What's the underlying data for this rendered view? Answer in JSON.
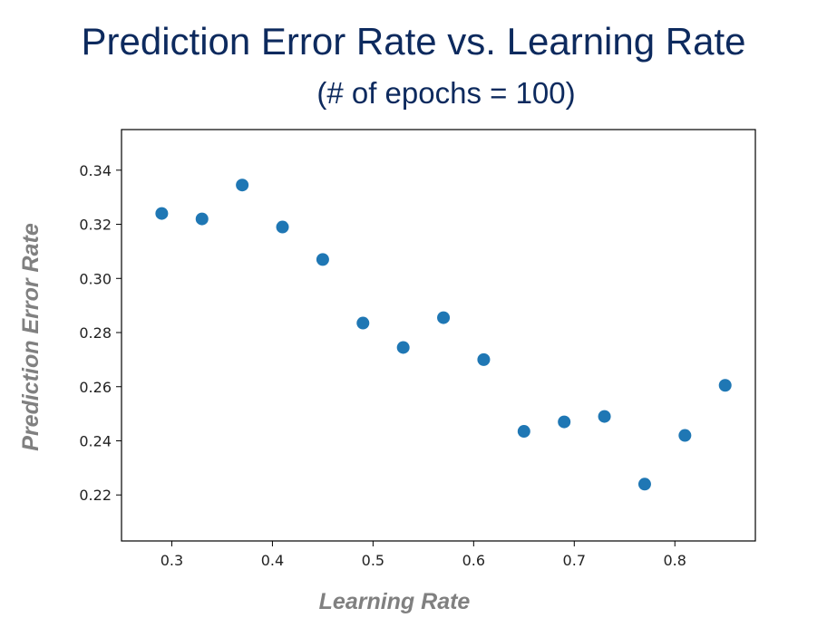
{
  "chart_data": {
    "type": "scatter",
    "title": "Prediction Error Rate vs. Learning Rate",
    "subtitle": "(# of epochs = 100)",
    "xlabel": "Learning Rate",
    "ylabel": "Prediction Error Rate",
    "xlim": [
      0.25,
      0.88
    ],
    "ylim": [
      0.203,
      0.355
    ],
    "xticks": [
      0.3,
      0.4,
      0.5,
      0.6,
      0.7,
      0.8
    ],
    "xtick_labels": [
      "0.3",
      "0.4",
      "0.5",
      "0.6",
      "0.7",
      "0.8"
    ],
    "yticks": [
      0.22,
      0.24,
      0.26,
      0.28,
      0.3,
      0.32,
      0.34
    ],
    "ytick_labels": [
      "0.22",
      "0.24",
      "0.26",
      "0.28",
      "0.30",
      "0.32",
      "0.34"
    ],
    "grid": false,
    "marker_color": "#1f77b4",
    "points": [
      {
        "x": 0.29,
        "y": 0.324
      },
      {
        "x": 0.33,
        "y": 0.322
      },
      {
        "x": 0.37,
        "y": 0.3345
      },
      {
        "x": 0.41,
        "y": 0.319
      },
      {
        "x": 0.45,
        "y": 0.307
      },
      {
        "x": 0.49,
        "y": 0.2835
      },
      {
        "x": 0.53,
        "y": 0.2745
      },
      {
        "x": 0.57,
        "y": 0.2855
      },
      {
        "x": 0.61,
        "y": 0.27
      },
      {
        "x": 0.65,
        "y": 0.2435
      },
      {
        "x": 0.69,
        "y": 0.247
      },
      {
        "x": 0.73,
        "y": 0.249
      },
      {
        "x": 0.77,
        "y": 0.224
      },
      {
        "x": 0.81,
        "y": 0.242
      },
      {
        "x": 0.85,
        "y": 0.2605
      }
    ]
  }
}
